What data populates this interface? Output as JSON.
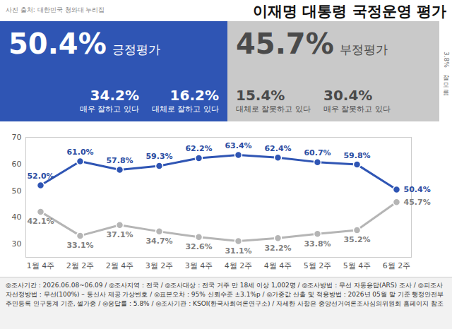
{
  "header": {
    "source": "사진 출처: 대한민국 청와대 누리집",
    "title": "이재명 대통령 국정운영 평가"
  },
  "summary": {
    "positive": {
      "label": "긍정평가",
      "value": 50.4,
      "value_label": "50.4%",
      "items": [
        {
          "label": "매우 잘하고 있다",
          "value": 34.2,
          "value_label": "34.2%"
        },
        {
          "label": "대체로 잘하고 있다",
          "value": 16.2,
          "value_label": "16.2%"
        }
      ]
    },
    "negative": {
      "label": "부정평가",
      "value": 45.7,
      "value_label": "45.7%",
      "items": [
        {
          "label": "대체로 잘못하고 있다",
          "value": 15.4,
          "value_label": "15.4%"
        },
        {
          "label": "매우 잘못하고 있다",
          "value": 30.4,
          "value_label": "30.4%"
        }
      ]
    },
    "unknown": {
      "label": "잘 모름",
      "value": 3.8,
      "value_label": "3.8%"
    }
  },
  "chart_data": {
    "type": "line",
    "categories": [
      "1월 4주",
      "2월 2주",
      "2월 4주",
      "3월 2주",
      "3월 4주",
      "4월 2주",
      "4월 4주",
      "5월 2주",
      "5월 4주",
      "6월 2주"
    ],
    "series": [
      {
        "name": "긍정평가",
        "color": "#2f55b4",
        "marker": "circle",
        "values": [
          52.0,
          61.0,
          57.8,
          59.3,
          62.2,
          63.4,
          62.4,
          60.7,
          59.8,
          50.4
        ],
        "value_labels": [
          "52.0%",
          "61.0%",
          "57.8%",
          "59.3%",
          "62.2%",
          "63.4%",
          "62.4%",
          "60.7%",
          "59.8%",
          "50.4%"
        ]
      },
      {
        "name": "부정평가",
        "color": "#b5b5b5",
        "marker": "circle",
        "values": [
          42.1,
          33.1,
          37.1,
          34.7,
          32.6,
          31.1,
          32.2,
          33.8,
          35.2,
          45.7
        ],
        "value_labels": [
          "42.1%",
          "33.1%",
          "37.1%",
          "34.7%",
          "32.6%",
          "31.1%",
          "32.2%",
          "33.8%",
          "35.2%",
          "45.7%"
        ]
      }
    ],
    "ylim": [
      25,
      70
    ],
    "yticks": [
      30,
      40,
      50,
      60,
      70
    ],
    "grid": false,
    "data_labels": true
  },
  "footer": "◎조사기간 : 2026.06.08~06.09 / ◎조사지역 : 전국 / ◎조사대상 : 전국 거주 만 18세 이상 1,002명 / ◎조사방법 : 무선 자동응답(ARS) 조사 / ◎피조사자선정방법 : 무선(100%) – 통신사 제공 가상번호 / ◎표본오차 : 95% 신뢰수준 ±3.1%p / ◎가중값 산출 및 적용방법 : 2026년 05월 말 기준 행정안전부 주민등록 인구통계 기준, 셀가중 / ◎응답률 : 5.8% / ◎조사기관 : KSOI(한국사회여론연구소) / 자세한 사항은 중앙선거여론조사심의위원회 홈페이지 참조"
}
